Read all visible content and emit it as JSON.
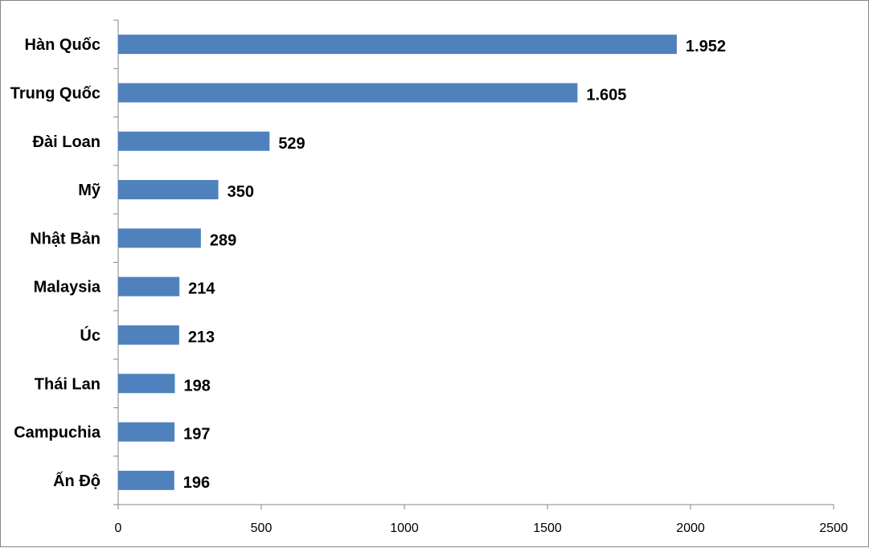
{
  "chart_data": {
    "type": "bar",
    "orientation": "horizontal",
    "categories": [
      "Hàn Quốc",
      "Trung Quốc",
      "Đài Loan",
      "Mỹ",
      "Nhật Bản",
      "Malaysia",
      "Úc",
      "Thái Lan",
      "Campuchia",
      "Ấn Độ"
    ],
    "values": [
      1952,
      1605,
      529,
      350,
      289,
      214,
      213,
      198,
      197,
      196
    ],
    "data_labels": [
      "1.952",
      "1.605",
      "529",
      "350",
      "289",
      "214",
      "213",
      "198",
      "197",
      "196"
    ],
    "xlim": [
      0,
      2500
    ],
    "xticks": [
      0,
      500,
      1000,
      1500,
      2000,
      2500
    ],
    "title": "",
    "xlabel": "",
    "ylabel": "",
    "grid": false,
    "legend": "none",
    "bar_color": "#4F81BD"
  }
}
